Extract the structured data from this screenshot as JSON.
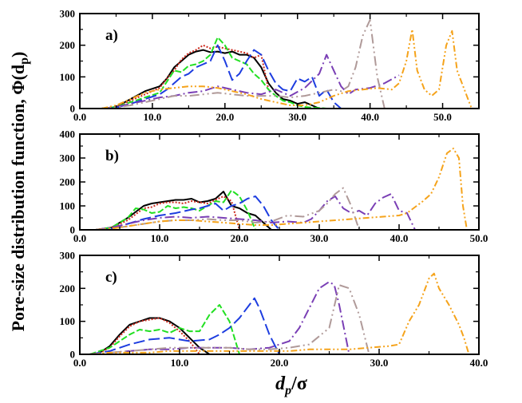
{
  "figure": {
    "ylabel": "Pore-size distribution function, Φ(d",
    "ylabel_sub": "p",
    "ylabel_close": ")",
    "xlabel_main": "d",
    "xlabel_sub": "p",
    "xlabel_tail": "/σ"
  },
  "colors": {
    "black": "#000000",
    "red": "#cc2a1e",
    "green": "#22e022",
    "blue": "#1d3de0",
    "purple": "#7a3fb5",
    "rosy": "#b09a99",
    "orange": "#f5a31b"
  },
  "chart_data": [
    {
      "type": "line",
      "panel_label": "a)",
      "xlim": [
        0,
        55
      ],
      "ylim": [
        0,
        300
      ],
      "xticks": [
        0,
        10,
        20,
        30,
        40,
        50
      ],
      "xtick_labels": [
        "0.0",
        "10.0",
        "20.0",
        "30.0",
        "40.0",
        "50.0"
      ],
      "yticks": [
        0,
        100,
        200,
        300
      ],
      "ytick_labels": [
        "0",
        "100",
        "200",
        "300"
      ],
      "series": [
        {
          "color_key": "black",
          "dash": "solid",
          "x": [
            3,
            5,
            7,
            9,
            11,
            12,
            13,
            14,
            15,
            16,
            17,
            18,
            19,
            20,
            21,
            22,
            23,
            24,
            25,
            26,
            27,
            28,
            29,
            30,
            31,
            32,
            33
          ],
          "y": [
            0,
            5,
            30,
            55,
            70,
            95,
            130,
            150,
            170,
            180,
            185,
            178,
            180,
            175,
            180,
            170,
            170,
            160,
            130,
            80,
            50,
            30,
            25,
            15,
            20,
            10,
            0
          ]
        },
        {
          "color_key": "red",
          "dash": "2,2",
          "x": [
            3,
            5,
            7,
            9,
            11,
            12,
            13,
            14,
            15,
            16,
            17,
            18,
            19,
            20,
            21,
            22,
            23,
            24,
            25,
            26
          ],
          "y": [
            0,
            5,
            25,
            45,
            65,
            95,
            120,
            155,
            175,
            185,
            200,
            190,
            195,
            190,
            185,
            180,
            175,
            160,
            170,
            60
          ]
        },
        {
          "color_key": "green",
          "dash": "8,3",
          "x": [
            3,
            5,
            7,
            9,
            11,
            12,
            13,
            14,
            15,
            16,
            17,
            18,
            19,
            20,
            21,
            22,
            23,
            24,
            25,
            26,
            27,
            28,
            29,
            30,
            31,
            32,
            33,
            34
          ],
          "y": [
            0,
            5,
            20,
            35,
            50,
            85,
            120,
            115,
            135,
            140,
            150,
            170,
            225,
            200,
            160,
            150,
            140,
            110,
            90,
            60,
            40,
            25,
            20,
            10,
            5,
            3,
            2,
            0
          ]
        },
        {
          "color_key": "blue",
          "dash": "14,5",
          "x": [
            3,
            5,
            7,
            9,
            11,
            12,
            13,
            14,
            15,
            16,
            17,
            18,
            19,
            20,
            21,
            22,
            23,
            24,
            25,
            26,
            27,
            28,
            29,
            30,
            31,
            32,
            33,
            34,
            35,
            36
          ],
          "y": [
            0,
            3,
            15,
            30,
            45,
            60,
            80,
            100,
            110,
            130,
            140,
            150,
            200,
            150,
            90,
            110,
            150,
            185,
            170,
            120,
            80,
            60,
            55,
            95,
            85,
            100,
            40,
            60,
            20,
            0
          ]
        },
        {
          "color_key": "purple",
          "dash": "12,4,2,4",
          "x": [
            3,
            5,
            7,
            9,
            11,
            13,
            15,
            17,
            19,
            21,
            23,
            25,
            27,
            29,
            31,
            33,
            34,
            35,
            36,
            37,
            38,
            40,
            42,
            44
          ],
          "y": [
            0,
            5,
            15,
            25,
            35,
            40,
            50,
            55,
            70,
            60,
            50,
            45,
            60,
            40,
            65,
            110,
            170,
            120,
            70,
            45,
            60,
            65,
            80,
            105
          ]
        },
        {
          "color_key": "rosy",
          "dash": "12,4,2,4,2,4",
          "x": [
            3,
            5,
            7,
            9,
            11,
            13,
            15,
            17,
            19,
            21,
            23,
            25,
            27,
            29,
            31,
            33,
            35,
            36,
            37,
            38,
            39,
            40,
            41,
            42
          ],
          "y": [
            0,
            3,
            10,
            20,
            30,
            40,
            40,
            45,
            50,
            45,
            40,
            40,
            40,
            35,
            40,
            50,
            60,
            55,
            70,
            130,
            230,
            280,
            100,
            0
          ]
        },
        {
          "color_key": "orange",
          "dash": "8,3,2,3,2,3",
          "x": [
            3,
            5,
            7,
            9,
            11,
            13,
            15,
            17,
            19,
            21,
            23,
            25,
            27,
            29,
            31,
            33,
            35,
            37,
            39,
            41,
            43,
            44,
            45,
            45.8,
            46.5,
            47.5,
            48.5,
            49.5,
            50.5,
            51.3,
            52,
            53,
            54
          ],
          "y": [
            0,
            10,
            30,
            50,
            60,
            65,
            70,
            70,
            65,
            55,
            45,
            30,
            20,
            10,
            10,
            20,
            40,
            55,
            60,
            65,
            60,
            80,
            150,
            250,
            120,
            60,
            40,
            60,
            200,
            245,
            120,
            60,
            0
          ]
        }
      ]
    },
    {
      "type": "line",
      "panel_label": "b)",
      "xlim": [
        0,
        50
      ],
      "ylim": [
        0,
        400
      ],
      "xticks": [
        0,
        10,
        20,
        30,
        40,
        50
      ],
      "xtick_labels": [
        "0.0",
        "10.0",
        "20.0",
        "30.0",
        "40.0",
        "50.0"
      ],
      "yticks": [
        0,
        100,
        200,
        300,
        400
      ],
      "ytick_labels": [
        "0",
        "100",
        "200",
        "300",
        "400"
      ],
      "series": [
        {
          "color_key": "black",
          "dash": "solid",
          "x": [
            2,
            4,
            6,
            8,
            9,
            10,
            11,
            12,
            13,
            14,
            15,
            16,
            17,
            18,
            19,
            20,
            21,
            22,
            23,
            24
          ],
          "y": [
            0,
            10,
            50,
            100,
            110,
            115,
            120,
            125,
            125,
            130,
            115,
            120,
            130,
            160,
            100,
            90,
            70,
            60,
            30,
            0
          ]
        },
        {
          "color_key": "red",
          "dash": "2,2",
          "x": [
            2,
            4,
            6,
            8,
            9,
            10,
            11,
            12,
            13,
            14,
            15,
            16,
            17,
            18,
            19,
            20
          ],
          "y": [
            0,
            10,
            40,
            90,
            95,
            110,
            115,
            115,
            110,
            120,
            115,
            110,
            125,
            140,
            120,
            0
          ]
        },
        {
          "color_key": "green",
          "dash": "8,3",
          "x": [
            2,
            4,
            6,
            7,
            8,
            9,
            10,
            11,
            12,
            13,
            14,
            15,
            16,
            17,
            18,
            19,
            20,
            21,
            22
          ],
          "y": [
            0,
            10,
            50,
            90,
            85,
            70,
            75,
            100,
            90,
            95,
            90,
            80,
            100,
            120,
            115,
            165,
            140,
            80,
            0
          ]
        },
        {
          "color_key": "blue",
          "dash": "14,5",
          "x": [
            2,
            4,
            6,
            8,
            10,
            12,
            14,
            15,
            16,
            17,
            18,
            19,
            20,
            21,
            22,
            23,
            24,
            25
          ],
          "y": [
            0,
            5,
            25,
            45,
            60,
            70,
            85,
            90,
            100,
            110,
            80,
            100,
            110,
            130,
            140,
            100,
            40,
            0
          ]
        },
        {
          "color_key": "purple",
          "dash": "12,4,2,4",
          "x": [
            2,
            4,
            6,
            8,
            10,
            12,
            14,
            16,
            18,
            20,
            22,
            24,
            26,
            28,
            29,
            30,
            31,
            32,
            33,
            34,
            35,
            36,
            37,
            38,
            39,
            40,
            41,
            42
          ],
          "y": [
            0,
            10,
            25,
            40,
            50,
            55,
            50,
            55,
            50,
            45,
            40,
            30,
            35,
            30,
            45,
            80,
            120,
            140,
            90,
            70,
            80,
            60,
            110,
            135,
            150,
            80,
            70,
            0
          ]
        },
        {
          "color_key": "rosy",
          "dash": "12,4,2,4,2,4",
          "x": [
            2,
            4,
            6,
            8,
            10,
            12,
            14,
            16,
            18,
            20,
            22,
            24,
            26,
            28,
            30,
            31,
            32,
            33,
            34,
            35
          ],
          "y": [
            0,
            5,
            15,
            25,
            35,
            40,
            40,
            45,
            40,
            40,
            30,
            35,
            60,
            55,
            80,
            110,
            150,
            175,
            100,
            0
          ]
        },
        {
          "color_key": "orange",
          "dash": "8,3,2,3,2,3",
          "x": [
            2,
            4,
            6,
            8,
            10,
            12,
            14,
            16,
            18,
            20,
            22,
            24,
            26,
            28,
            30,
            32,
            34,
            36,
            38,
            40,
            41,
            42,
            43,
            44,
            45,
            46,
            46.8,
            47.5,
            48,
            48.5
          ],
          "y": [
            0,
            5,
            15,
            25,
            35,
            40,
            40,
            35,
            30,
            25,
            20,
            20,
            25,
            30,
            35,
            40,
            45,
            50,
            55,
            60,
            70,
            95,
            120,
            150,
            220,
            320,
            340,
            300,
            100,
            0
          ]
        }
      ]
    },
    {
      "type": "line",
      "panel_label": "c)",
      "xlim": [
        0,
        40
      ],
      "ylim": [
        0,
        300
      ],
      "xticks": [
        0,
        10,
        20,
        30,
        40
      ],
      "xtick_labels": [
        "0.0",
        "10.0",
        "20.0",
        "30.0",
        "40.0"
      ],
      "yticks": [
        0,
        100,
        200,
        300
      ],
      "ytick_labels": [
        "0",
        "100",
        "200",
        "300"
      ],
      "series": [
        {
          "color_key": "black",
          "dash": "solid",
          "x": [
            1,
            2,
            3,
            4,
            5,
            6,
            7,
            8,
            9,
            10,
            11,
            12,
            13
          ],
          "y": [
            0,
            5,
            25,
            60,
            90,
            100,
            110,
            110,
            100,
            80,
            50,
            20,
            0
          ]
        },
        {
          "color_key": "red",
          "dash": "2,2",
          "x": [
            1,
            2,
            3,
            4,
            5,
            6,
            7,
            8,
            9,
            10,
            11,
            12
          ],
          "y": [
            0,
            5,
            20,
            55,
            85,
            100,
            105,
            110,
            95,
            70,
            40,
            0
          ]
        },
        {
          "color_key": "green",
          "dash": "8,3",
          "x": [
            1,
            3,
            5,
            6,
            7,
            8,
            9,
            10,
            11,
            12,
            13,
            14,
            15,
            16
          ],
          "y": [
            0,
            20,
            60,
            75,
            70,
            75,
            65,
            80,
            70,
            70,
            120,
            150,
            100,
            0
          ]
        },
        {
          "color_key": "blue",
          "dash": "14,5",
          "x": [
            1,
            3,
            5,
            7,
            9,
            11,
            13,
            14,
            15,
            16,
            17,
            17.5,
            18,
            19,
            20
          ],
          "y": [
            0,
            10,
            30,
            45,
            50,
            40,
            45,
            60,
            80,
            110,
            150,
            170,
            140,
            60,
            0
          ]
        },
        {
          "color_key": "purple",
          "dash": "12,4,2,4",
          "x": [
            1,
            3,
            5,
            7,
            9,
            11,
            13,
            15,
            17,
            19,
            21,
            22,
            23,
            24,
            25,
            25.5,
            26,
            27
          ],
          "y": [
            0,
            5,
            10,
            15,
            15,
            20,
            20,
            20,
            15,
            20,
            40,
            80,
            140,
            200,
            220,
            210,
            150,
            0
          ]
        },
        {
          "color_key": "rosy",
          "dash": "12,4,2,4,2,4",
          "x": [
            1,
            3,
            5,
            7,
            9,
            11,
            13,
            15,
            17,
            19,
            21,
            23,
            25,
            26,
            27,
            28,
            29
          ],
          "y": [
            0,
            5,
            10,
            15,
            20,
            20,
            20,
            20,
            15,
            15,
            20,
            30,
            80,
            210,
            200,
            120,
            0
          ]
        },
        {
          "color_key": "orange",
          "dash": "8,3,2,3,2,3",
          "x": [
            1,
            3,
            5,
            7,
            9,
            11,
            13,
            15,
            17,
            19,
            21,
            23,
            25,
            27,
            29,
            31,
            32,
            33,
            34,
            35,
            35.5,
            36,
            37,
            38,
            38.5,
            39
          ],
          "y": [
            0,
            5,
            5,
            5,
            10,
            10,
            10,
            10,
            10,
            10,
            10,
            15,
            15,
            15,
            20,
            25,
            30,
            100,
            150,
            230,
            245,
            200,
            150,
            90,
            50,
            0
          ]
        }
      ]
    }
  ]
}
